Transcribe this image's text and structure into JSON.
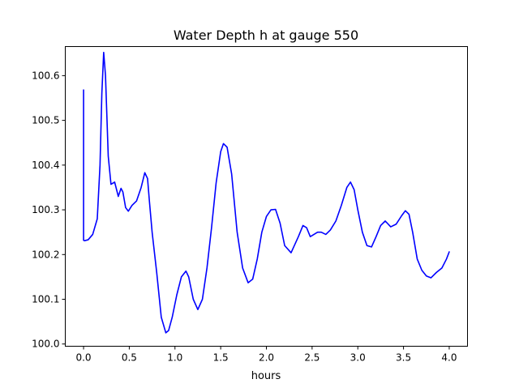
{
  "chart_data": {
    "type": "line",
    "title": "Water Depth h at gauge 550",
    "xlabel": "hours",
    "ylabel": "",
    "xlim": [
      -0.2,
      4.2
    ],
    "ylim": [
      99.995,
      100.665
    ],
    "x_ticks": [
      0.0,
      0.5,
      1.0,
      1.5,
      2.0,
      2.5,
      3.0,
      3.5,
      4.0
    ],
    "x_tick_labels": [
      "0.0",
      "0.5",
      "1.0",
      "1.5",
      "2.0",
      "2.5",
      "3.0",
      "3.5",
      "4.0"
    ],
    "y_ticks": [
      100.0,
      100.1,
      100.2,
      100.3,
      100.4,
      100.5,
      100.6
    ],
    "y_tick_labels": [
      "100.0",
      "100.1",
      "100.2",
      "100.3",
      "100.4",
      "100.5",
      "100.6"
    ],
    "grid": false,
    "series": [
      {
        "color": "#0000ff",
        "x": [
          0.0,
          0.0,
          0.01,
          0.05,
          0.1,
          0.15,
          0.18,
          0.2,
          0.22,
          0.24,
          0.27,
          0.3,
          0.34,
          0.38,
          0.41,
          0.43,
          0.46,
          0.49,
          0.53,
          0.58,
          0.63,
          0.67,
          0.7,
          0.72,
          0.75,
          0.8,
          0.85,
          0.9,
          0.93,
          0.97,
          1.02,
          1.07,
          1.12,
          1.15,
          1.2,
          1.25,
          1.3,
          1.35,
          1.4,
          1.45,
          1.5,
          1.53,
          1.57,
          1.62,
          1.68,
          1.74,
          1.8,
          1.85,
          1.9,
          1.95,
          2.0,
          2.05,
          2.1,
          2.15,
          2.2,
          2.27,
          2.35,
          2.4,
          2.44,
          2.48,
          2.52,
          2.56,
          2.6,
          2.65,
          2.7,
          2.76,
          2.82,
          2.88,
          2.92,
          2.96,
          3.0,
          3.05,
          3.1,
          3.15,
          3.2,
          3.25,
          3.3,
          3.36,
          3.42,
          3.48,
          3.52,
          3.56,
          3.6,
          3.65,
          3.7,
          3.75,
          3.8,
          3.86,
          3.92,
          3.97,
          4.0
        ],
        "y": [
          100.568,
          100.232,
          100.231,
          100.233,
          100.245,
          100.28,
          100.4,
          100.56,
          100.652,
          100.6,
          100.42,
          100.357,
          100.362,
          100.33,
          100.348,
          100.34,
          100.305,
          100.297,
          100.31,
          100.32,
          100.35,
          100.383,
          100.37,
          100.32,
          100.25,
          100.16,
          100.06,
          100.025,
          100.03,
          100.06,
          100.11,
          100.15,
          100.163,
          100.15,
          100.1,
          100.077,
          100.1,
          100.17,
          100.26,
          100.36,
          100.43,
          100.448,
          100.44,
          100.38,
          100.25,
          100.17,
          100.137,
          100.145,
          100.19,
          100.25,
          100.285,
          100.3,
          100.301,
          100.27,
          100.22,
          100.204,
          100.24,
          100.265,
          100.26,
          100.24,
          100.245,
          100.25,
          100.25,
          100.245,
          100.255,
          100.275,
          100.31,
          100.35,
          100.362,
          100.345,
          100.3,
          100.25,
          100.22,
          100.217,
          100.24,
          100.265,
          100.275,
          100.262,
          100.268,
          100.287,
          100.298,
          100.29,
          100.25,
          100.19,
          100.165,
          100.152,
          100.148,
          100.16,
          100.17,
          100.19,
          100.206
        ]
      }
    ]
  }
}
